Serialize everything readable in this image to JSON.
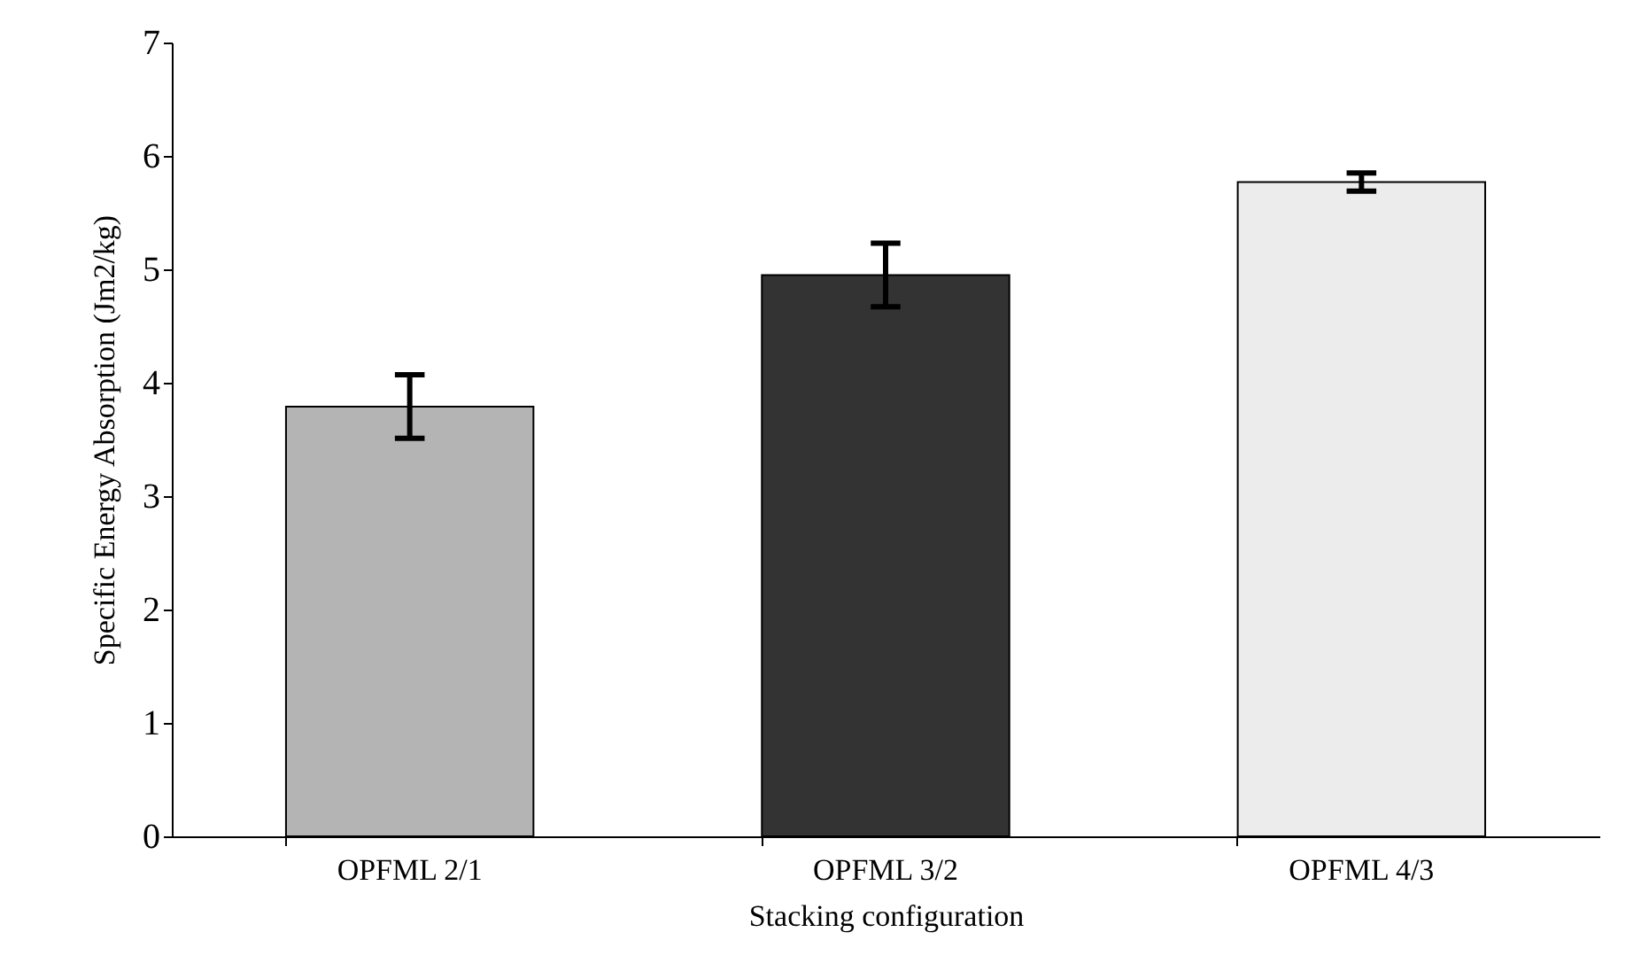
{
  "chart_data": {
    "type": "bar",
    "xlabel": "Stacking configuration",
    "ylabel": "Specific Energy Absorption (Jm2/kg)",
    "categories": [
      "OPFML 2/1",
      "OPFML 3/2",
      "OPFML 4/3"
    ],
    "values": [
      3.79,
      4.95,
      5.77
    ],
    "errors": [
      0.28,
      0.28,
      0.08
    ],
    "colors": [
      "#b4b4b4",
      "#333333",
      "#ececec"
    ],
    "ylim": [
      0,
      7
    ],
    "yticks": [
      0,
      1,
      2,
      3,
      4,
      5,
      6,
      7
    ],
    "grid": false
  }
}
